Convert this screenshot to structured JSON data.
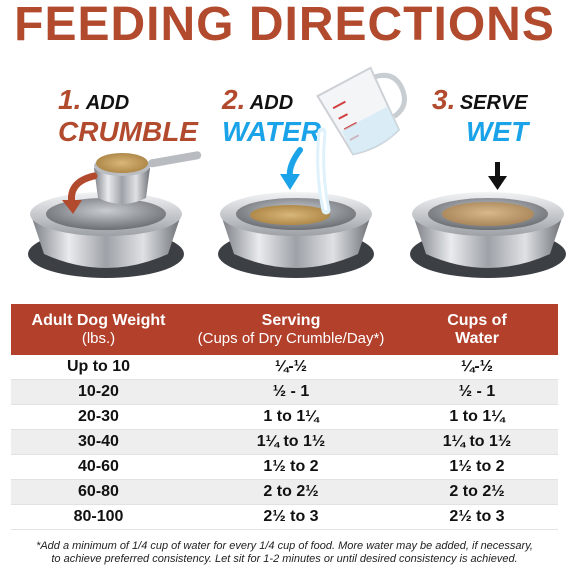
{
  "title": "FEEDING DIRECTIONS",
  "steps": [
    {
      "num": "1.",
      "verb": "ADD",
      "noun": "CRUMBLE"
    },
    {
      "num": "2.",
      "verb": "ADD",
      "noun": "WATER"
    },
    {
      "num": "3.",
      "verb": "SERVE",
      "noun": "WET"
    }
  ],
  "colors": {
    "brand_red": "#b24a2e",
    "accent_blue": "#1aa3e8",
    "header_bg": "#b2402b"
  },
  "table": {
    "headers": [
      {
        "line1": "Adult Dog Weight",
        "line2": "(lbs.)"
      },
      {
        "line1": "Serving",
        "line2": "(Cups of Dry Crumble/Day*)"
      },
      {
        "line1": "Cups of",
        "line2": "Water"
      }
    ],
    "rows": [
      [
        "Up to 10",
        "¼-½",
        "¼-½"
      ],
      [
        "10-20",
        "½ - 1",
        "½ - 1"
      ],
      [
        "20-30",
        "1 to 1¼",
        "1 to 1¼"
      ],
      [
        "30-40",
        "1¼ to 1½",
        "1¼ to 1½"
      ],
      [
        "40-60",
        "1½ to 2",
        "1½ to 2"
      ],
      [
        "60-80",
        "2 to 2½",
        "2 to 2½"
      ],
      [
        "80-100",
        "2½ to 3",
        "2½ to 3"
      ]
    ]
  },
  "footnote_line1": "*Add a minimum of 1/4 cup of water for every 1/4 cup of food. More water may be added, if necessary,",
  "footnote_line2": "to achieve preferred consistency. Let sit for 1-2 minutes or until desired consistency is achieved.",
  "icons": [
    "steel-bowl-icon",
    "measuring-scoop-icon",
    "measuring-cup-icon",
    "curved-arrow-icon",
    "down-arrow-icon"
  ]
}
